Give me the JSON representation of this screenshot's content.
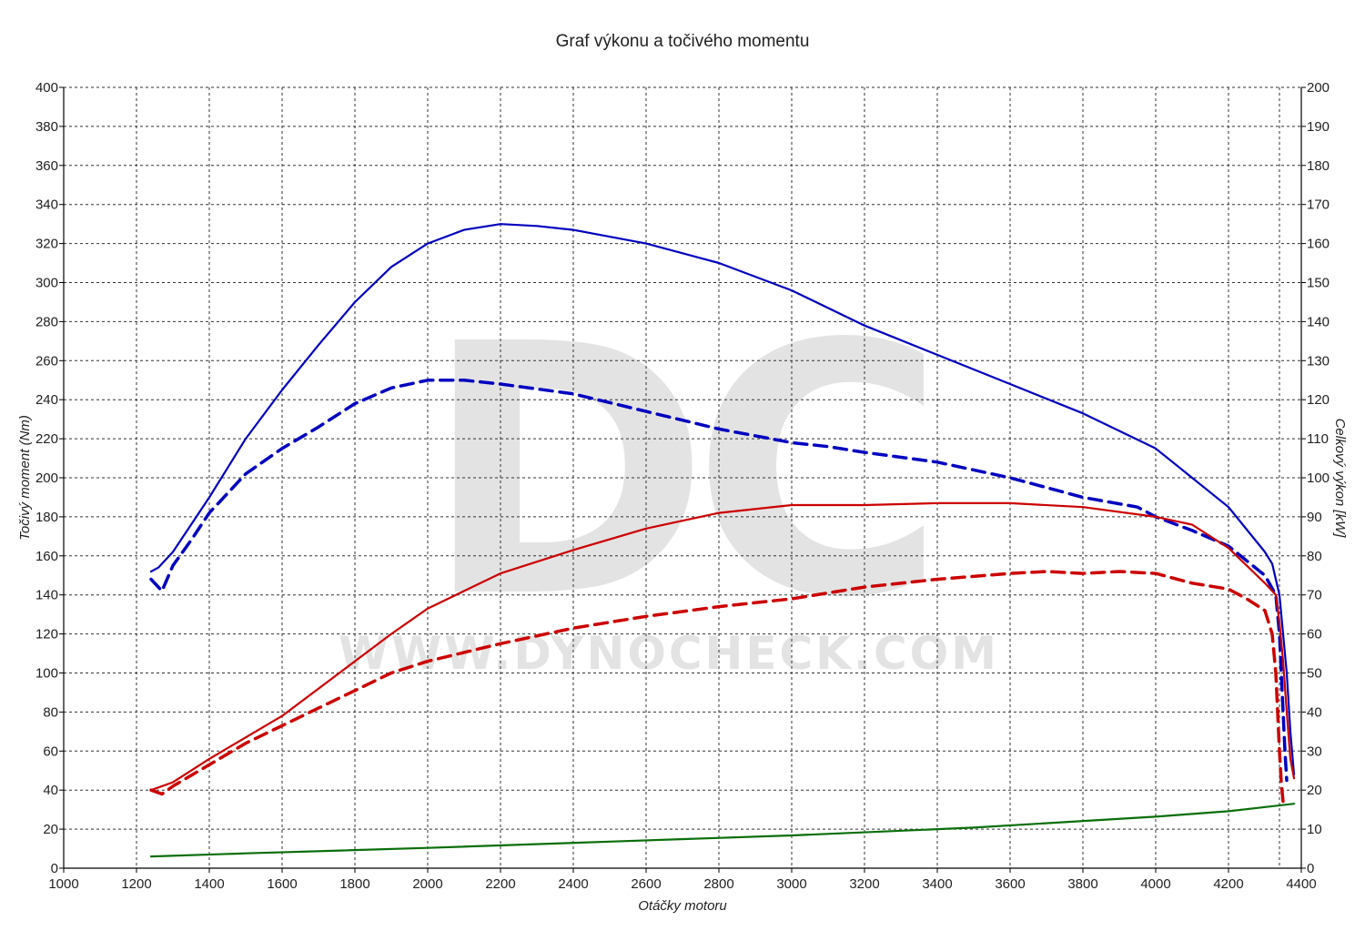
{
  "chart_data": {
    "type": "line",
    "title": "Graf výkonu a točivého momentu",
    "xlabel": "Otáčky motoru",
    "ylabel_left": "Točivý moment (Nm)",
    "ylabel_right": "Celkový výkon [kW]",
    "watermark": "www.dynocheck.com",
    "watermark_logo": "DC",
    "xlim": [
      1000,
      4400
    ],
    "ylim_left": [
      0,
      400
    ],
    "ylim_right": [
      0,
      200
    ],
    "xticks": [
      1000,
      1200,
      1400,
      1600,
      1800,
      2000,
      2200,
      2400,
      2600,
      2800,
      3000,
      3200,
      3400,
      3600,
      3800,
      4000,
      4200,
      4400
    ],
    "yticks_left": [
      0,
      20,
      40,
      60,
      80,
      100,
      120,
      140,
      160,
      180,
      200,
      220,
      240,
      260,
      280,
      300,
      320,
      340,
      360,
      380,
      400
    ],
    "yticks_right": [
      0,
      10,
      20,
      30,
      40,
      50,
      60,
      70,
      80,
      90,
      100,
      110,
      120,
      130,
      140,
      150,
      160,
      170,
      180,
      190,
      200
    ],
    "grid": true,
    "series": [
      {
        "color": "#0000c0",
        "dash": false,
        "axis": "left",
        "points": [
          [
            1240,
            152
          ],
          [
            1260,
            154
          ],
          [
            1280,
            158
          ],
          [
            1300,
            162
          ],
          [
            1350,
            176
          ],
          [
            1400,
            190
          ],
          [
            1450,
            205
          ],
          [
            1500,
            220
          ],
          [
            1600,
            245
          ],
          [
            1700,
            268
          ],
          [
            1800,
            290
          ],
          [
            1900,
            308
          ],
          [
            2000,
            320
          ],
          [
            2100,
            327
          ],
          [
            2200,
            330
          ],
          [
            2300,
            329
          ],
          [
            2400,
            327
          ],
          [
            2600,
            320
          ],
          [
            2800,
            310
          ],
          [
            3000,
            296
          ],
          [
            3200,
            278
          ],
          [
            3400,
            263
          ],
          [
            3600,
            248
          ],
          [
            3800,
            233
          ],
          [
            4000,
            215
          ],
          [
            4100,
            200
          ],
          [
            4200,
            185
          ],
          [
            4300,
            162
          ],
          [
            4320,
            156
          ],
          [
            4340,
            140
          ],
          [
            4350,
            120
          ],
          [
            4360,
            100
          ],
          [
            4370,
            70
          ],
          [
            4380,
            48
          ]
        ]
      },
      {
        "color": "#0000c0",
        "dash": true,
        "axis": "left",
        "points": [
          [
            1240,
            148
          ],
          [
            1270,
            142
          ],
          [
            1300,
            155
          ],
          [
            1350,
            168
          ],
          [
            1400,
            182
          ],
          [
            1500,
            202
          ],
          [
            1600,
            215
          ],
          [
            1700,
            226
          ],
          [
            1800,
            238
          ],
          [
            1900,
            246
          ],
          [
            2000,
            250
          ],
          [
            2100,
            250
          ],
          [
            2200,
            248
          ],
          [
            2400,
            243
          ],
          [
            2600,
            234
          ],
          [
            2800,
            225
          ],
          [
            3000,
            218
          ],
          [
            3100,
            216
          ],
          [
            3200,
            213
          ],
          [
            3400,
            208
          ],
          [
            3600,
            200
          ],
          [
            3800,
            190
          ],
          [
            3950,
            185
          ],
          [
            4000,
            180
          ],
          [
            4100,
            173
          ],
          [
            4200,
            165
          ],
          [
            4300,
            150
          ],
          [
            4330,
            140
          ],
          [
            4340,
            120
          ],
          [
            4345,
            100
          ],
          [
            4350,
            80
          ],
          [
            4355,
            60
          ],
          [
            4360,
            45
          ]
        ]
      },
      {
        "color": "#cc0000",
        "dash": false,
        "axis": "right",
        "points": [
          [
            1240,
            20
          ],
          [
            1300,
            22
          ],
          [
            1400,
            28
          ],
          [
            1500,
            33.5
          ],
          [
            1600,
            39
          ],
          [
            1700,
            46
          ],
          [
            1800,
            53
          ],
          [
            1900,
            60
          ],
          [
            2000,
            66.5
          ],
          [
            2100,
            71
          ],
          [
            2200,
            75.5
          ],
          [
            2400,
            81.5
          ],
          [
            2600,
            87
          ],
          [
            2800,
            91
          ],
          [
            3000,
            93
          ],
          [
            3200,
            93
          ],
          [
            3400,
            93.5
          ],
          [
            3600,
            93.5
          ],
          [
            3800,
            92.5
          ],
          [
            4000,
            90
          ],
          [
            4100,
            88
          ],
          [
            4200,
            82
          ],
          [
            4300,
            73
          ],
          [
            4330,
            70
          ],
          [
            4340,
            63
          ],
          [
            4350,
            53
          ],
          [
            4360,
            40
          ],
          [
            4370,
            28
          ],
          [
            4380,
            23
          ]
        ]
      },
      {
        "color": "#cc0000",
        "dash": true,
        "axis": "right",
        "points": [
          [
            1240,
            20
          ],
          [
            1270,
            19
          ],
          [
            1300,
            21
          ],
          [
            1400,
            26.5
          ],
          [
            1500,
            32
          ],
          [
            1600,
            36.5
          ],
          [
            1700,
            41
          ],
          [
            1800,
            45.5
          ],
          [
            1900,
            50
          ],
          [
            2000,
            53
          ],
          [
            2200,
            57.5
          ],
          [
            2400,
            61.5
          ],
          [
            2600,
            64.5
          ],
          [
            2800,
            67
          ],
          [
            3000,
            69
          ],
          [
            3200,
            72
          ],
          [
            3400,
            74
          ],
          [
            3600,
            75.5
          ],
          [
            3700,
            76
          ],
          [
            3800,
            75.5
          ],
          [
            3900,
            76
          ],
          [
            4000,
            75.5
          ],
          [
            4100,
            73
          ],
          [
            4200,
            71.5
          ],
          [
            4250,
            69
          ],
          [
            4300,
            66
          ],
          [
            4320,
            60
          ],
          [
            4330,
            50
          ],
          [
            4335,
            40
          ],
          [
            4340,
            30
          ],
          [
            4345,
            22
          ],
          [
            4350,
            17
          ]
        ]
      },
      {
        "color": "#0a6e0a",
        "dash": false,
        "axis": "right",
        "points": [
          [
            1240,
            3
          ],
          [
            1500,
            3.8
          ],
          [
            2000,
            5.2
          ],
          [
            2500,
            6.8
          ],
          [
            3000,
            8.4
          ],
          [
            3500,
            10.4
          ],
          [
            4000,
            13.2
          ],
          [
            4200,
            14.6
          ],
          [
            4380,
            16.5
          ]
        ]
      }
    ]
  }
}
